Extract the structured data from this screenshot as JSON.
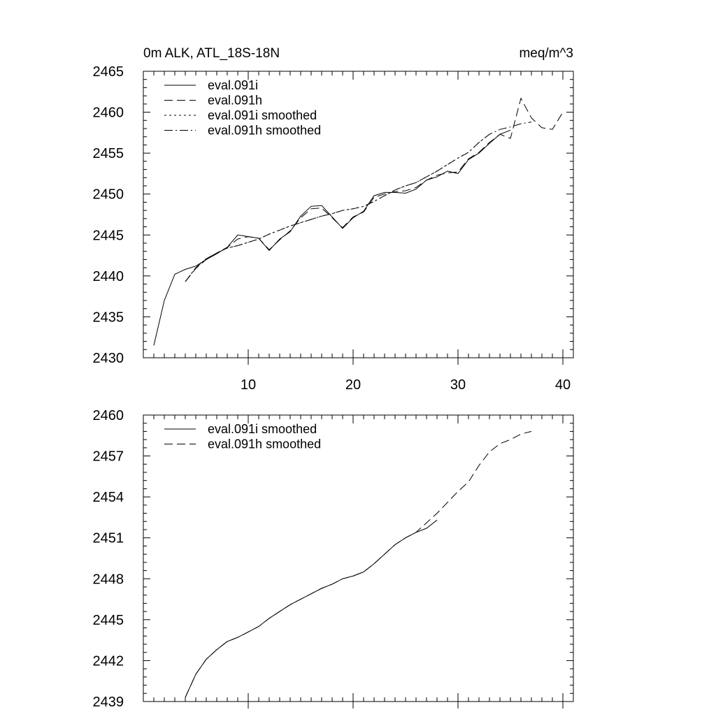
{
  "chart_data": [
    {
      "type": "line",
      "title_left": "0m ALK, ATL_18S-18N",
      "title_right": "meq/m^3",
      "xlim": [
        0,
        41
      ],
      "ylim": [
        2430,
        2465
      ],
      "xticks": [
        10,
        20,
        30,
        40
      ],
      "yticks": [
        2430,
        2435,
        2440,
        2445,
        2450,
        2455,
        2460,
        2465
      ],
      "series": [
        {
          "name": "eval.091i",
          "style": "solid",
          "x": [
            1,
            2,
            3,
            4,
            5,
            6,
            7,
            8,
            9,
            10,
            11,
            12,
            13,
            14,
            15,
            16,
            17,
            18,
            19,
            20,
            21,
            22,
            23,
            24,
            25,
            26,
            27,
            28,
            29,
            30,
            31,
            32,
            33,
            34,
            35
          ],
          "y": [
            2431.5,
            2437,
            2440.2,
            2440.8,
            2441.2,
            2442.0,
            2442.7,
            2443.5,
            2445.0,
            2444.8,
            2444.6,
            2443.1,
            2444.5,
            2445.4,
            2447.3,
            2448.5,
            2448.6,
            2447.2,
            2445.8,
            2447.1,
            2447.9,
            2449.8,
            2450.2,
            2450.2,
            2450.1,
            2450.6,
            2451.7,
            2452.1,
            2452.8,
            2452.5,
            2454.2,
            2455.0,
            2456.2,
            2457.3,
            2457.8
          ]
        },
        {
          "name": "eval.091h",
          "style": "dashed",
          "x": [
            4,
            5,
            6,
            7,
            8,
            9,
            10,
            11,
            12,
            13,
            14,
            15,
            16,
            17,
            18,
            19,
            20,
            21,
            22,
            23,
            24,
            25,
            26,
            27,
            28,
            29,
            30,
            31,
            32,
            33,
            34,
            35,
            36,
            37,
            38,
            39,
            40
          ],
          "y": [
            2439.3,
            2440.9,
            2442.0,
            2442.8,
            2443.5,
            2444.5,
            2444.8,
            2444.6,
            2443.2,
            2444.4,
            2445.5,
            2447.1,
            2448.2,
            2448.3,
            2447.1,
            2445.9,
            2447.2,
            2447.8,
            2449.6,
            2450.0,
            2450.3,
            2450.4,
            2450.8,
            2451.7,
            2452.3,
            2452.6,
            2452.7,
            2454.3,
            2455.1,
            2456.3,
            2457.3,
            2456.8,
            2461.7,
            2459.3,
            2458.1,
            2457.9,
            2460.0
          ]
        },
        {
          "name": "eval.091i smoothed",
          "style": "dotted",
          "x": [
            4,
            5,
            6,
            7,
            8,
            9,
            10,
            11,
            12,
            13,
            14,
            15,
            16,
            17,
            18,
            19,
            20,
            21,
            22,
            23,
            24,
            25,
            26,
            27,
            28,
            29,
            30,
            31,
            32,
            33
          ],
          "y": [
            2439.3,
            2441.0,
            2442.1,
            2442.8,
            2443.4,
            2443.7,
            2444.1,
            2444.5,
            2445.1,
            2445.6,
            2446.1,
            2446.5,
            2446.9,
            2447.3,
            2447.6,
            2448.0,
            2448.2,
            2448.5,
            2449.1,
            2449.8,
            2450.5,
            2451.0,
            2451.4,
            2452.1,
            2452.8,
            2453.6,
            2454.4,
            2455.1,
            2456.3,
            2457.3
          ]
        },
        {
          "name": "eval.091h smoothed",
          "style": "dashdot",
          "x": [
            4,
            5,
            6,
            7,
            8,
            9,
            10,
            11,
            12,
            13,
            14,
            15,
            16,
            17,
            18,
            19,
            20,
            21,
            22,
            23,
            24,
            25,
            26,
            27,
            28,
            29,
            30,
            31,
            32,
            33,
            34,
            35,
            36,
            37
          ],
          "y": [
            2439.3,
            2441.0,
            2442.1,
            2442.8,
            2443.4,
            2443.7,
            2444.1,
            2444.5,
            2445.1,
            2445.6,
            2446.1,
            2446.5,
            2446.9,
            2447.3,
            2447.6,
            2448.0,
            2448.2,
            2448.5,
            2449.1,
            2449.8,
            2450.5,
            2451.0,
            2451.4,
            2452.1,
            2452.8,
            2453.6,
            2454.4,
            2455.1,
            2456.3,
            2457.3,
            2457.9,
            2458.2,
            2458.6,
            2458.8
          ]
        }
      ],
      "legend": [
        "eval.091i",
        "eval.091h",
        "eval.091i smoothed",
        "eval.091h smoothed"
      ]
    },
    {
      "type": "line",
      "xlim": [
        0,
        41
      ],
      "ylim": [
        2439,
        2460
      ],
      "xticks": [
        10,
        20,
        30,
        40
      ],
      "yticks": [
        2439,
        2442,
        2445,
        2448,
        2451,
        2454,
        2457,
        2460
      ],
      "series": [
        {
          "name": "eval.091i smoothed",
          "style": "solid",
          "x": [
            4,
            5,
            6,
            7,
            8,
            9,
            10,
            11,
            12,
            13,
            14,
            15,
            16,
            17,
            18,
            19,
            20,
            21,
            22,
            23,
            24,
            25,
            26,
            27,
            28
          ],
          "y": [
            2439.3,
            2441.0,
            2442.1,
            2442.8,
            2443.4,
            2443.7,
            2444.1,
            2444.5,
            2445.1,
            2445.6,
            2446.1,
            2446.5,
            2446.9,
            2447.3,
            2447.6,
            2448.0,
            2448.2,
            2448.5,
            2449.1,
            2449.8,
            2450.5,
            2451.0,
            2451.4,
            2451.7,
            2452.3
          ]
        },
        {
          "name": "eval.091h smoothed",
          "style": "dashed",
          "x": [
            4,
            5,
            6,
            7,
            8,
            9,
            10,
            11,
            12,
            13,
            14,
            15,
            16,
            17,
            18,
            19,
            20,
            21,
            22,
            23,
            24,
            25,
            26,
            27,
            28,
            29,
            30,
            31,
            32,
            33,
            34,
            35,
            36,
            37
          ],
          "y": [
            2439.3,
            2441.0,
            2442.1,
            2442.8,
            2443.4,
            2443.7,
            2444.1,
            2444.5,
            2445.1,
            2445.6,
            2446.1,
            2446.5,
            2446.9,
            2447.3,
            2447.6,
            2448.0,
            2448.2,
            2448.5,
            2449.1,
            2449.8,
            2450.5,
            2451.0,
            2451.4,
            2452.1,
            2452.8,
            2453.6,
            2454.4,
            2455.1,
            2456.3,
            2457.3,
            2457.9,
            2458.2,
            2458.6,
            2458.8
          ]
        }
      ],
      "legend": [
        "eval.091i smoothed",
        "eval.091h smoothed"
      ]
    }
  ]
}
